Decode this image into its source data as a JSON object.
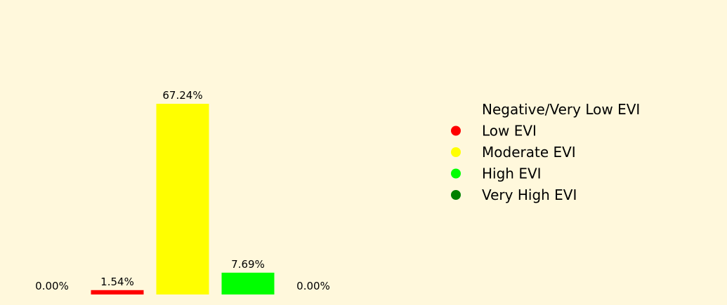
{
  "chart_data": {
    "type": "bar",
    "categories": [
      "Negative/Very Low EVI",
      "Low EVI",
      "Moderate EVI",
      "High EVI",
      "Very High EVI"
    ],
    "values": [
      0.0,
      1.54,
      67.24,
      7.69,
      0.0
    ],
    "data_labels": [
      "0.00%",
      "1.54%",
      "67.24%",
      "7.69%",
      "0.00%"
    ],
    "colors": [
      "#fff8dc",
      "#ff0000",
      "#ffff00",
      "#00ff00",
      "#008000"
    ],
    "title": "",
    "xlabel": "",
    "ylabel": "",
    "ylim": [
      0,
      70
    ],
    "axes_visible": false,
    "grid": false,
    "legend": {
      "placement": "right",
      "entries": [
        "Negative/Very Low EVI",
        "Low EVI",
        "Moderate EVI",
        "High EVI",
        "Very High EVI"
      ]
    }
  }
}
